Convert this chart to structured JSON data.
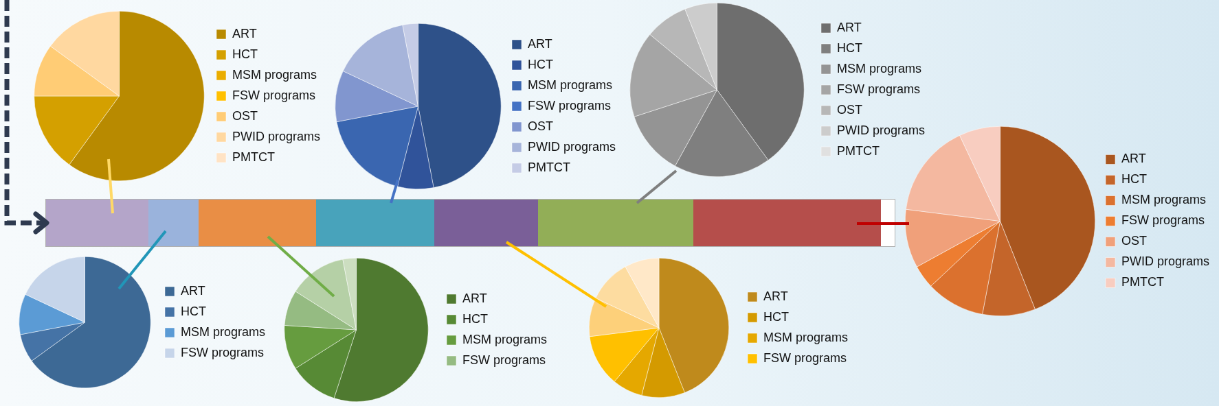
{
  "chart_data": [
    {
      "type": "pie",
      "categories": [
        "ART",
        "HCT",
        "MSM programs",
        "FSW programs",
        "OST",
        "PWID programs",
        "PMTCT"
      ],
      "values": [
        60,
        15,
        0,
        0,
        10,
        15,
        0
      ],
      "colors": [
        "#b88a00",
        "#d4a000",
        "#eaad00",
        "#ffc000",
        "#ffcc75",
        "#ffd8a0",
        "#ffe3c5"
      ],
      "legend": "right"
    },
    {
      "type": "pie",
      "categories": [
        "ART",
        "HCT",
        "MSM programs",
        "FSW programs",
        "OST",
        "PWID programs",
        "PMTCT"
      ],
      "values": [
        47,
        7,
        18,
        0,
        10,
        15,
        3
      ],
      "colors": [
        "#2e5189",
        "#30539a",
        "#3a66b0",
        "#4472c4",
        "#8196cf",
        "#a6b4da",
        "#c5cce6"
      ],
      "legend": "right"
    },
    {
      "type": "pie",
      "categories": [
        "ART",
        "HCT",
        "MSM programs",
        "FSW programs",
        "OST",
        "PWID programs",
        "PMTCT"
      ],
      "values": [
        40,
        18,
        12,
        16,
        8,
        6,
        0
      ],
      "colors": [
        "#6e6e6e",
        "#7f7f7f",
        "#949494",
        "#a5a5a5",
        "#b7b7b7",
        "#cccccc",
        "#e0e0e0"
      ],
      "legend": "right"
    },
    {
      "type": "pie",
      "categories": [
        "ART",
        "HCT",
        "MSM programs",
        "FSW programs",
        "OST",
        "PWID programs",
        "PMTCT"
      ],
      "values": [
        44,
        9,
        10,
        4,
        10,
        16,
        7
      ],
      "colors": [
        "#a9561f",
        "#c4652a",
        "#db712e",
        "#ed7d31",
        "#f0a07a",
        "#f4b8a0",
        "#f8cdc0"
      ],
      "legend": "right"
    },
    {
      "type": "pie",
      "categories": [
        "ART",
        "HCT",
        "MSM programs",
        "FSW programs"
      ],
      "values": [
        65,
        7,
        10,
        18
      ],
      "colors": [
        "#3d6995",
        "#4573a6",
        "#5b9bd5",
        "#c6d5ea"
      ],
      "legend": "right"
    },
    {
      "type": "pie",
      "categories": [
        "ART",
        "HCT",
        "MSM programs",
        "FSW programs",
        null,
        null
      ],
      "values": [
        55,
        11,
        10,
        8,
        13,
        3
      ],
      "colors": [
        "#4f7a30",
        "#578a35",
        "#669c3f",
        "#95bb82",
        "#b5d0a6",
        "#ccdec0"
      ],
      "legend": "right"
    },
    {
      "type": "pie",
      "categories": [
        "ART",
        "HCT",
        "MSM programs",
        "FSW programs",
        null,
        null,
        null
      ],
      "values": [
        44,
        10,
        7,
        12,
        9,
        10,
        8
      ],
      "colors": [
        "#bf8a1c",
        "#d49a00",
        "#e5a800",
        "#ffc000",
        "#fdd07a",
        "#fddca0",
        "#ffe8c8"
      ],
      "legend": "right"
    }
  ]
}
